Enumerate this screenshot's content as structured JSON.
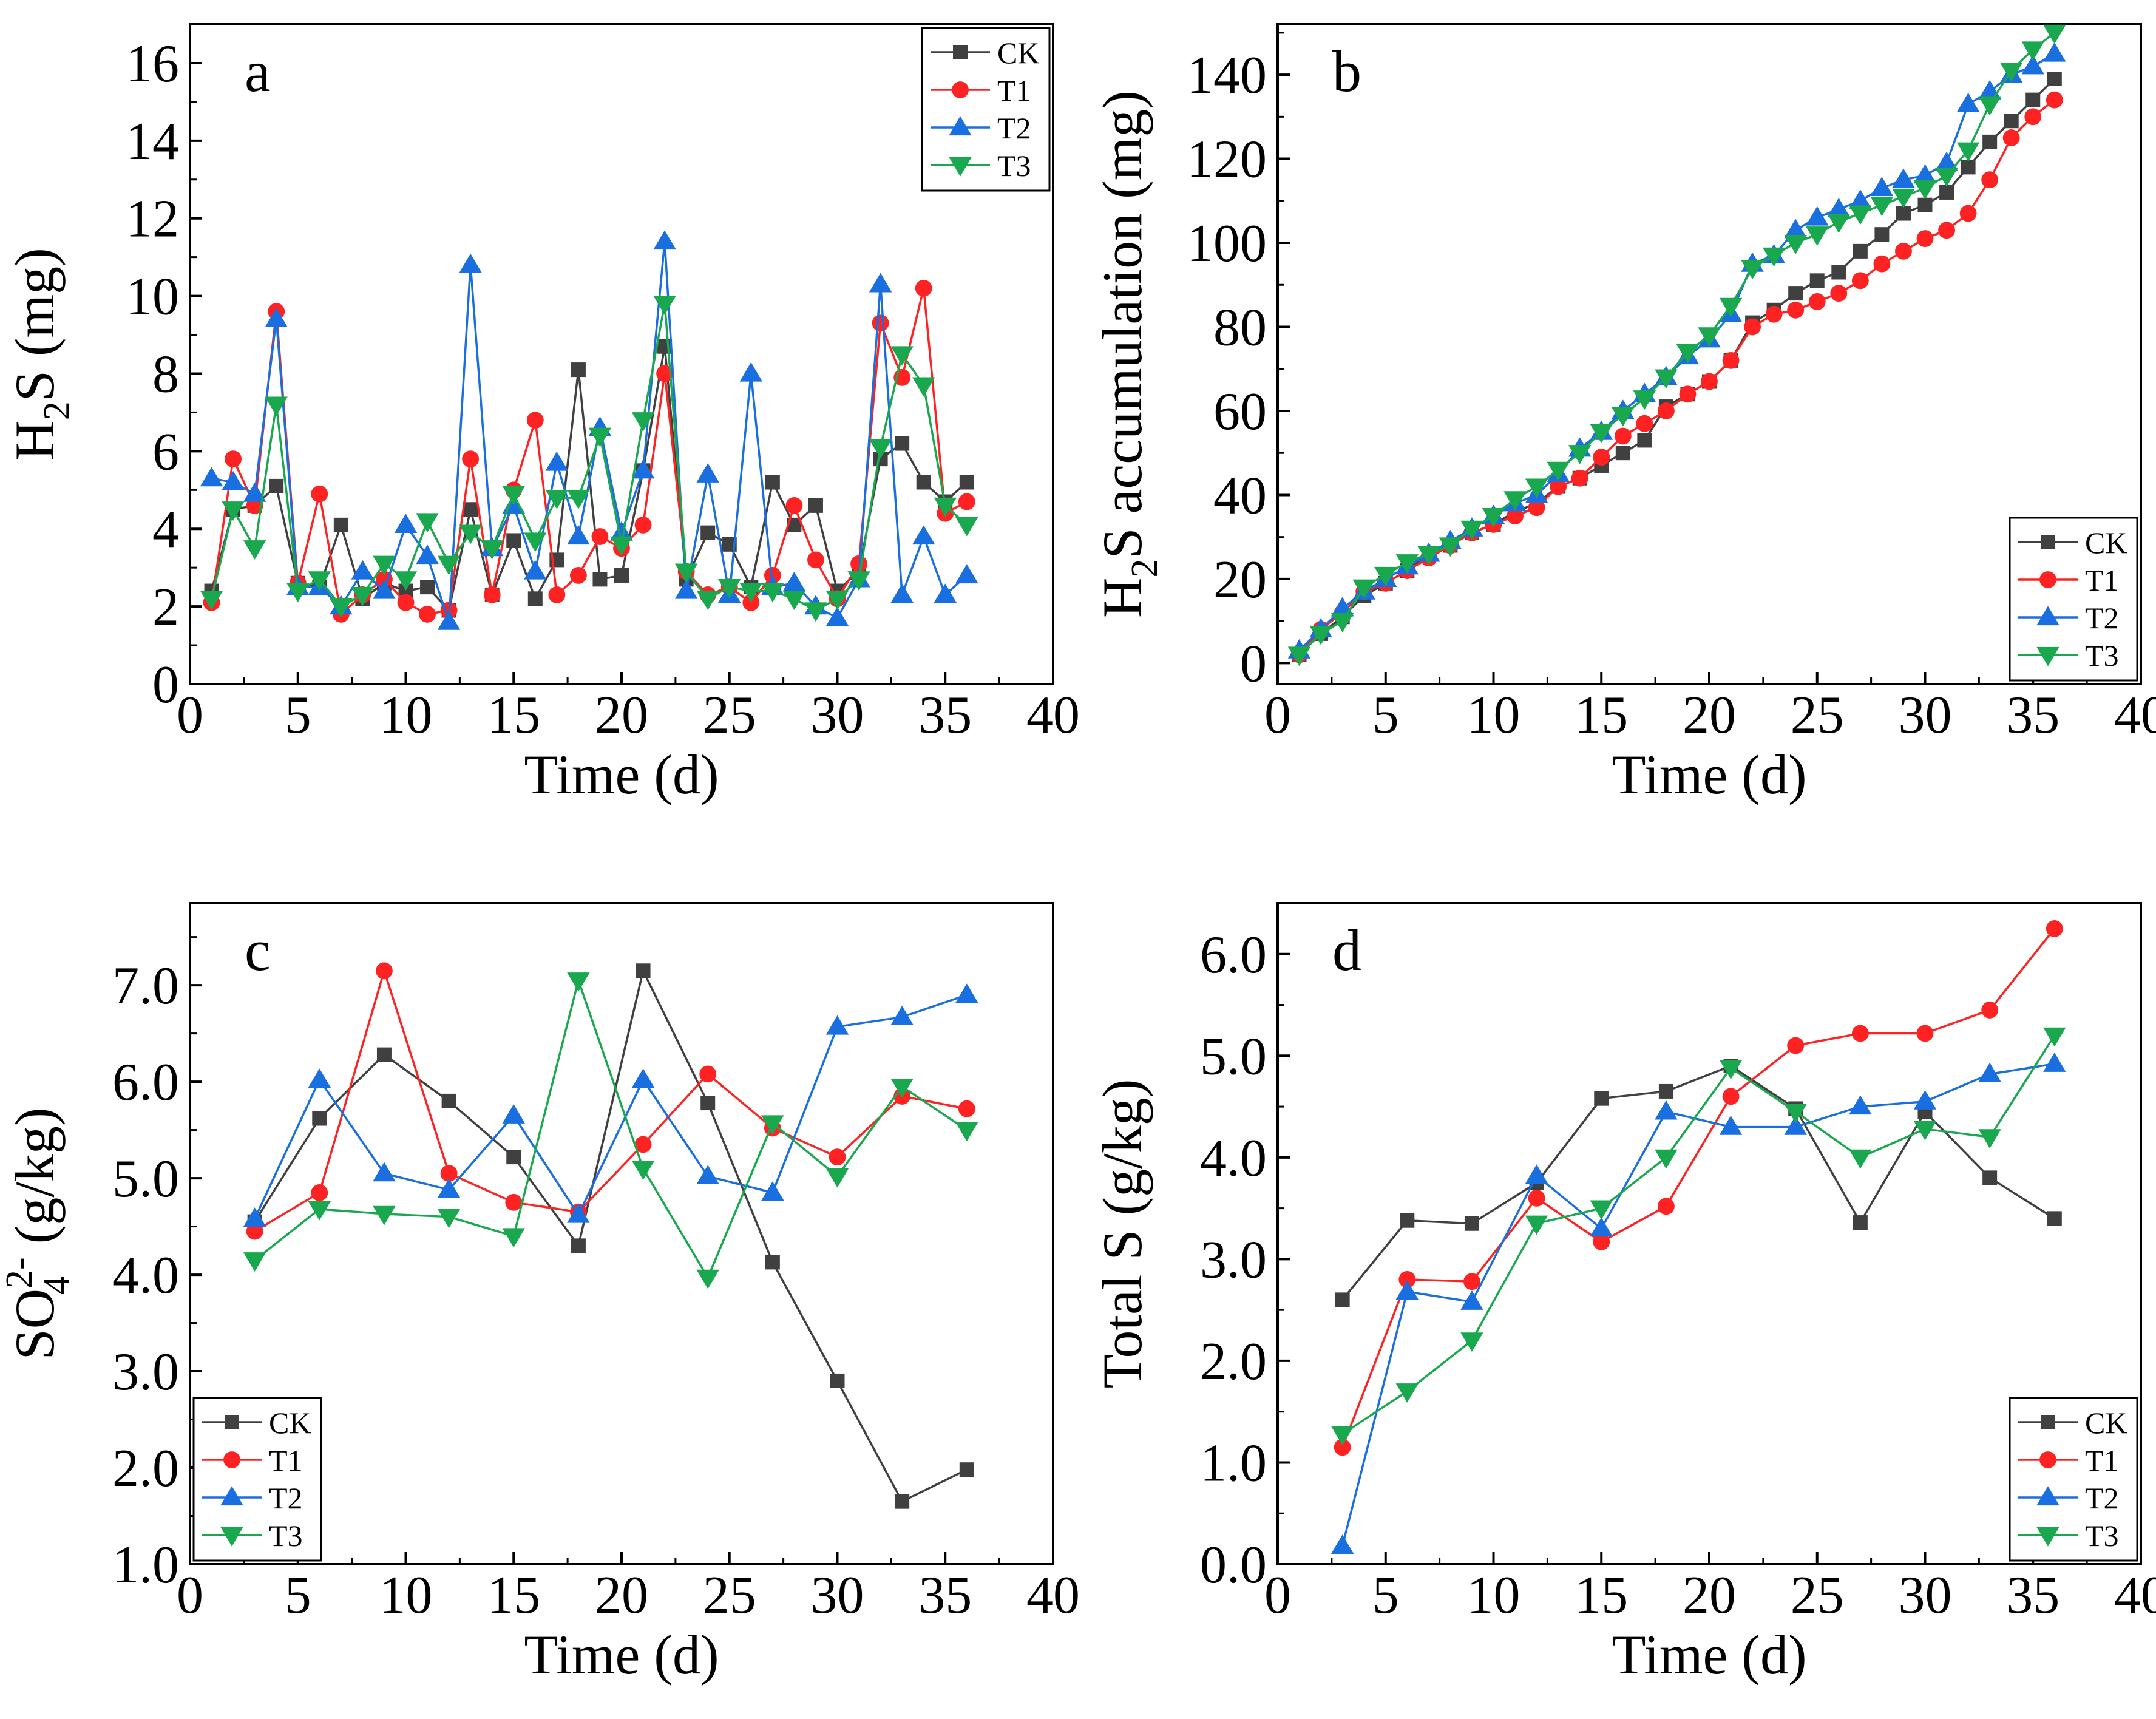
{
  "colors": {
    "CK": "#404040",
    "T1": "#ff2222",
    "T2": "#1a6fe0",
    "T3": "#1aa84f"
  },
  "markers": {
    "CK": "square",
    "T1": "circle",
    "T2": "triangle-up",
    "T3": "triangle-down"
  },
  "chart_data": [
    {
      "id": "a",
      "panel_label": "a",
      "type": "line",
      "xlabel": "Time (d)",
      "ylabel_parts": {
        "main": "H",
        "sub": "2",
        "rest": "S (mg)"
      },
      "xlim": [
        0,
        40
      ],
      "ylim": [
        0,
        17
      ],
      "xticks": [
        0,
        5,
        10,
        15,
        20,
        25,
        30,
        35,
        40
      ],
      "yticks": [
        0,
        2,
        4,
        6,
        8,
        10,
        12,
        14,
        16
      ],
      "ytick_labels": [
        "0",
        "2",
        "4",
        "6",
        "8",
        "10",
        "12",
        "14",
        "16"
      ],
      "legend_position": "top-right",
      "x": [
        1,
        2,
        3,
        4,
        5,
        6,
        7,
        8,
        9,
        10,
        11,
        12,
        13,
        14,
        15,
        16,
        17,
        18,
        19,
        20,
        21,
        22,
        23,
        24,
        25,
        26,
        27,
        28,
        29,
        30,
        31,
        32,
        33,
        34,
        35,
        36
      ],
      "series": [
        {
          "name": "CK",
          "values": [
            2.4,
            4.5,
            4.6,
            5.1,
            2.6,
            2.5,
            4.1,
            2.2,
            2.6,
            2.4,
            2.5,
            1.9,
            4.5,
            2.3,
            3.7,
            2.2,
            3.2,
            8.1,
            2.7,
            2.8,
            5.5,
            8.7,
            2.7,
            3.9,
            3.6,
            2.5,
            5.2,
            4.1,
            4.6,
            2.4,
            2.9,
            5.8,
            6.2,
            5.2,
            4.7,
            5.2
          ]
        },
        {
          "name": "T1",
          "values": [
            2.1,
            5.8,
            4.6,
            9.6,
            2.6,
            4.9,
            1.8,
            2.3,
            2.7,
            2.1,
            1.8,
            1.9,
            5.8,
            2.3,
            5.0,
            6.8,
            2.3,
            2.8,
            3.8,
            3.5,
            4.1,
            8.0,
            2.9,
            2.3,
            2.5,
            2.1,
            2.8,
            4.6,
            3.2,
            2.2,
            3.1,
            9.3,
            7.9,
            10.2,
            4.4,
            4.7
          ]
        },
        {
          "name": "T2",
          "values": [
            5.3,
            5.2,
            4.9,
            9.4,
            2.5,
            2.5,
            2.0,
            2.9,
            2.4,
            4.1,
            3.3,
            1.6,
            10.8,
            3.5,
            4.6,
            2.9,
            5.7,
            3.8,
            6.6,
            3.9,
            5.5,
            11.4,
            2.4,
            5.4,
            2.3,
            8.0,
            2.5,
            2.6,
            2.0,
            1.7,
            2.7,
            10.3,
            2.3,
            3.8,
            2.3,
            2.8
          ]
        },
        {
          "name": "T3",
          "values": [
            2.2,
            4.5,
            3.5,
            7.2,
            2.4,
            2.7,
            2.0,
            2.3,
            3.1,
            2.7,
            4.2,
            3.1,
            3.9,
            3.5,
            4.9,
            3.7,
            4.8,
            4.8,
            6.4,
            3.6,
            6.8,
            9.8,
            2.9,
            2.2,
            2.5,
            2.4,
            2.4,
            2.2,
            1.9,
            2.2,
            2.7,
            6.1,
            8.5,
            7.7,
            4.6,
            4.1
          ]
        }
      ]
    },
    {
      "id": "b",
      "panel_label": "b",
      "type": "line",
      "xlabel": "Time (d)",
      "ylabel_parts": {
        "main": "H",
        "sub": "2",
        "rest": "S accumulation (mg)"
      },
      "xlim": [
        0,
        40
      ],
      "ylim": [
        -5,
        152
      ],
      "xticks": [
        0,
        5,
        10,
        15,
        20,
        25,
        30,
        35,
        40
      ],
      "yticks": [
        0,
        20,
        40,
        60,
        80,
        100,
        120,
        140
      ],
      "ytick_labels": [
        "0",
        "20",
        "40",
        "60",
        "80",
        "100",
        "120",
        "140"
      ],
      "legend_position": "bottom-right",
      "x": [
        1,
        2,
        3,
        4,
        5,
        6,
        7,
        8,
        9,
        10,
        11,
        12,
        13,
        14,
        15,
        16,
        17,
        18,
        19,
        20,
        21,
        22,
        23,
        24,
        25,
        26,
        27,
        28,
        29,
        30,
        31,
        32,
        33,
        34,
        35,
        36
      ],
      "series": [
        {
          "name": "CK",
          "values": [
            2,
            7,
            11,
            16,
            19,
            22,
            26,
            28,
            31,
            33,
            36,
            38,
            42,
            44,
            47,
            50,
            53,
            61,
            64,
            67,
            72,
            81,
            84,
            88,
            91,
            93,
            98,
            102,
            107,
            109,
            112,
            118,
            124,
            129,
            134,
            139
          ]
        },
        {
          "name": "T1",
          "values": [
            2,
            8,
            12,
            17,
            19,
            22,
            25,
            28,
            31,
            33,
            35,
            37,
            42,
            44,
            49,
            54,
            57,
            60,
            64,
            67,
            72,
            80,
            83,
            84,
            86,
            88,
            91,
            95,
            98,
            101,
            103,
            107,
            115,
            125,
            130,
            134
          ]
        },
        {
          "name": "T2",
          "values": [
            3,
            8,
            13,
            17,
            20,
            23,
            26,
            29,
            32,
            35,
            38,
            40,
            45,
            51,
            55,
            60,
            64,
            68,
            73,
            77,
            83,
            95,
            97,
            103,
            106,
            108,
            110,
            113,
            115,
            116,
            119,
            133,
            136,
            140,
            142,
            145
          ]
        },
        {
          "name": "T3",
          "values": [
            2,
            7,
            10,
            18,
            21,
            24,
            26,
            28,
            32,
            35,
            39,
            42,
            46,
            50,
            55,
            59,
            63,
            68,
            74,
            78,
            85,
            94,
            97,
            100,
            102,
            105,
            107,
            109,
            111,
            113,
            116,
            122,
            133,
            141,
            146,
            150
          ]
        }
      ]
    },
    {
      "id": "c",
      "panel_label": "c",
      "type": "line",
      "xlabel": "Time (d)",
      "ylabel_parts": {
        "main": "SO",
        "sup": "2-",
        "sub": "4",
        "rest": " (g/kg)"
      },
      "xlim": [
        0,
        40
      ],
      "ylim": [
        1.0,
        7.85
      ],
      "xticks": [
        0,
        5,
        10,
        15,
        20,
        25,
        30,
        35,
        40
      ],
      "yticks": [
        1.0,
        2.0,
        3.0,
        4.0,
        5.0,
        6.0,
        7.0
      ],
      "ytick_labels": [
        "1.0",
        "2.0",
        "3.0",
        "4.0",
        "5.0",
        "6.0",
        "7.0"
      ],
      "legend_position": "bottom-left",
      "x": [
        3,
        6,
        9,
        12,
        15,
        18,
        21,
        24,
        27,
        30,
        33,
        36
      ],
      "series": [
        {
          "name": "CK",
          "values": [
            4.55,
            5.62,
            6.28,
            5.8,
            5.22,
            4.3,
            7.15,
            5.78,
            4.13,
            2.9,
            1.65,
            1.98
          ]
        },
        {
          "name": "T1",
          "values": [
            4.45,
            4.85,
            7.15,
            5.05,
            4.75,
            4.65,
            5.35,
            6.08,
            5.52,
            5.22,
            5.85,
            5.72
          ]
        },
        {
          "name": "T2",
          "values": [
            4.58,
            6.02,
            5.05,
            4.88,
            5.65,
            4.62,
            6.02,
            5.02,
            4.85,
            6.57,
            6.67,
            6.9
          ]
        },
        {
          "name": "T3",
          "values": [
            4.15,
            4.68,
            4.63,
            4.6,
            4.4,
            7.05,
            5.1,
            3.97,
            5.57,
            5.02,
            5.95,
            5.5
          ]
        }
      ]
    },
    {
      "id": "d",
      "panel_label": "d",
      "type": "line",
      "xlabel": "Time (d)",
      "ylabel_parts": {
        "main": "Total S (g/kg)"
      },
      "xlim": [
        0,
        40
      ],
      "ylim": [
        0.0,
        6.5
      ],
      "xticks": [
        0,
        5,
        10,
        15,
        20,
        25,
        30,
        35,
        40
      ],
      "yticks": [
        0.0,
        1.0,
        2.0,
        3.0,
        4.0,
        5.0,
        6.0
      ],
      "ytick_labels": [
        "0.0",
        "1.0",
        "2.0",
        "3.0",
        "4.0",
        "5.0",
        "6.0"
      ],
      "legend_position": "bottom-right",
      "x": [
        3,
        6,
        9,
        12,
        15,
        18,
        21,
        24,
        27,
        30,
        33,
        36
      ],
      "series": [
        {
          "name": "CK",
          "values": [
            2.6,
            3.38,
            3.35,
            3.75,
            4.58,
            4.65,
            4.9,
            4.48,
            3.36,
            4.45,
            3.8,
            3.4
          ]
        },
        {
          "name": "T1",
          "values": [
            1.15,
            2.8,
            2.78,
            3.6,
            3.17,
            3.52,
            4.6,
            5.1,
            5.22,
            5.22,
            5.45,
            6.25
          ]
        },
        {
          "name": "T2",
          "values": [
            0.18,
            2.68,
            2.58,
            3.82,
            3.3,
            4.45,
            4.3,
            4.3,
            4.5,
            4.55,
            4.82,
            4.92
          ]
        },
        {
          "name": "T3",
          "values": [
            1.28,
            1.7,
            2.2,
            3.35,
            3.5,
            4.0,
            4.88,
            4.45,
            4.0,
            4.28,
            4.2,
            5.2
          ]
        }
      ]
    }
  ]
}
